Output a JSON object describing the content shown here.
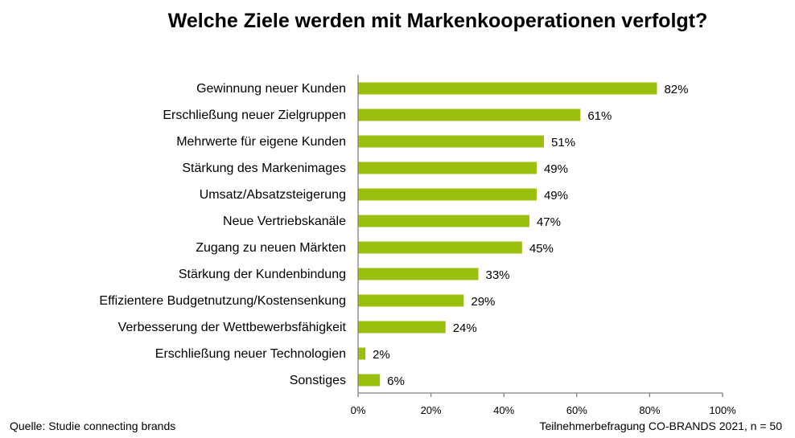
{
  "chart_data": {
    "type": "bar",
    "orientation": "horizontal",
    "title": "Welche Ziele werden mit Markenkooperationen verfolgt?",
    "categories": [
      "Gewinnung neuer Kunden",
      "Erschließung neuer Zielgruppen",
      "Mehrwerte für eigene Kunden",
      "Stärkung des Markenimages",
      "Umsatz/Absatzsteigerung",
      "Neue Vertriebskanäle",
      "Zugang zu neuen Märkten",
      "Stärkung der Kundenbindung",
      "Effizientere Budgetnutzung/Kostensenkung",
      "Verbesserung der Wettbewerbsfähigkeit",
      "Erschließung neuer Technologien",
      "Sonstiges"
    ],
    "values": [
      82,
      61,
      51,
      49,
      49,
      47,
      45,
      33,
      29,
      24,
      2,
      6
    ],
    "value_labels": [
      "82%",
      "61%",
      "51%",
      "49%",
      "49%",
      "47%",
      "45%",
      "33%",
      "29%",
      "24%",
      "2%",
      "6%"
    ],
    "xlim": [
      0,
      100
    ],
    "xticks": [
      "0%",
      "20%",
      "40%",
      "60%",
      "80%",
      "100%"
    ],
    "xlabel": "",
    "ylabel": "",
    "grid": false,
    "bar_color": "#9bbf0e"
  },
  "footer": {
    "source": "Quelle: Studie connecting brands",
    "survey": "Teilnehmerbefragung CO-BRANDS 2021, n = 50"
  }
}
